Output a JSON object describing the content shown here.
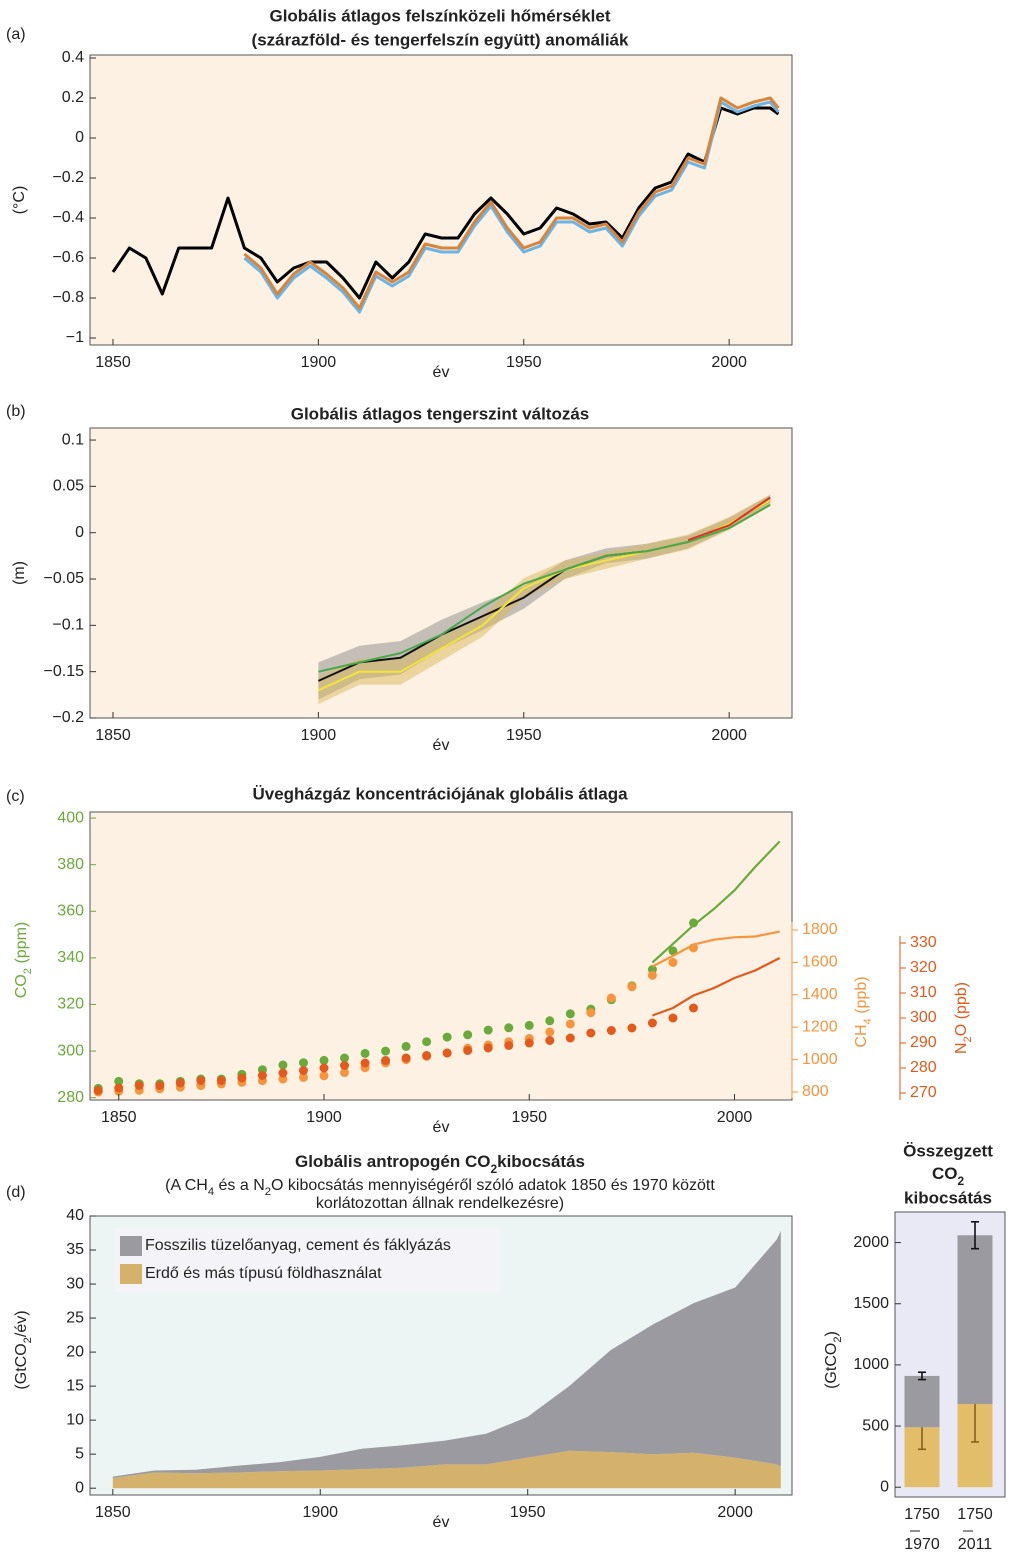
{
  "chart_data": [
    {
      "type": "line",
      "panel_label": "(a)",
      "title": [
        "Globális átlagos felszínközeli hőmérséklet",
        "(szárazföld- és tengerfelszín együtt) anomáliák"
      ],
      "x_label": "év",
      "y_label": "(°C)",
      "xlim": [
        1844.4,
        2015.3
      ],
      "ylim": [
        -1.035,
        0.415
      ],
      "xticks": [
        1850,
        1900,
        1950,
        2000
      ],
      "yticks": [
        {
          "value": -1,
          "label": "−1"
        },
        {
          "value": -0.8,
          "label": "−0.8"
        },
        {
          "value": -0.6,
          "label": "−0.6"
        },
        {
          "value": -0.4,
          "label": "−0.4"
        },
        {
          "value": -0.2,
          "label": "−0.2"
        },
        0,
        0.2,
        0.4
      ],
      "x": [
        1850,
        1854,
        1858,
        1862,
        1866,
        1870,
        1874,
        1878,
        1882,
        1886,
        1890,
        1894,
        1898,
        1902,
        1906,
        1910,
        1914,
        1918,
        1922,
        1926,
        1930,
        1934,
        1938,
        1942,
        1946,
        1950,
        1954,
        1958,
        1962,
        1966,
        1970,
        1974,
        1978,
        1982,
        1986,
        1990,
        1994,
        1998,
        2002,
        2006,
        2010,
        2012
      ],
      "series": [
        {
          "color": "#000000",
          "values": [
            -0.67,
            -0.55,
            -0.6,
            -0.78,
            -0.55,
            -0.55,
            -0.55,
            -0.3,
            -0.55,
            -0.6,
            -0.72,
            -0.65,
            -0.62,
            -0.62,
            -0.7,
            -0.8,
            -0.62,
            -0.7,
            -0.62,
            -0.48,
            -0.5,
            -0.5,
            -0.38,
            -0.3,
            -0.38,
            -0.48,
            -0.45,
            -0.35,
            -0.38,
            -0.43,
            -0.42,
            -0.5,
            -0.35,
            -0.25,
            -0.22,
            -0.08,
            -0.12,
            0.15,
            0.12,
            0.15,
            0.15,
            0.12
          ]
        },
        {
          "color": "#6cb4e4",
          "values": [
            null,
            null,
            null,
            null,
            null,
            null,
            null,
            null,
            -0.6,
            -0.67,
            -0.8,
            -0.7,
            -0.64,
            -0.7,
            -0.77,
            -0.87,
            -0.69,
            -0.74,
            -0.69,
            -0.55,
            -0.57,
            -0.57,
            -0.44,
            -0.34,
            -0.47,
            -0.57,
            -0.54,
            -0.42,
            -0.42,
            -0.47,
            -0.45,
            -0.54,
            -0.39,
            -0.29,
            -0.26,
            -0.12,
            -0.15,
            0.18,
            0.13,
            0.16,
            0.18,
            0.13
          ]
        },
        {
          "color": "#d8843c",
          "values": [
            null,
            null,
            null,
            null,
            null,
            null,
            null,
            null,
            -0.58,
            -0.65,
            -0.78,
            -0.68,
            -0.62,
            -0.68,
            -0.75,
            -0.85,
            -0.67,
            -0.72,
            -0.67,
            -0.53,
            -0.55,
            -0.55,
            -0.42,
            -0.32,
            -0.45,
            -0.55,
            -0.52,
            -0.4,
            -0.4,
            -0.45,
            -0.43,
            -0.52,
            -0.37,
            -0.27,
            -0.24,
            -0.1,
            -0.13,
            0.2,
            0.15,
            0.18,
            0.2,
            0.15
          ]
        }
      ]
    },
    {
      "type": "line",
      "panel_label": "(b)",
      "title": "Globális átlagos tengerszint változás",
      "x_label": "év",
      "y_label": "(m)",
      "xlim": [
        1844.4,
        2015.3
      ],
      "ylim": [
        -0.2,
        0.113
      ],
      "xticks": [
        1850,
        1900,
        1950,
        2000
      ],
      "yticks": [
        {
          "value": -0.2,
          "label": "−0.2"
        },
        {
          "value": -0.15,
          "label": "−0.15"
        },
        {
          "value": -0.1,
          "label": "−0.1"
        },
        {
          "value": -0.05,
          "label": "−0.05"
        },
        0,
        0.05,
        0.1
      ],
      "x": [
        1900,
        1910,
        1920,
        1930,
        1940,
        1950,
        1960,
        1970,
        1980,
        1990,
        2000,
        2010
      ],
      "series": [
        {
          "color": "#111111",
          "band_color": "#8c8c8c",
          "values": [
            -0.16,
            -0.14,
            -0.135,
            -0.11,
            -0.09,
            -0.07,
            -0.04,
            -0.025,
            -0.02,
            -0.01,
            0.01,
            0.035
          ],
          "errors": [
            0.02,
            0.018,
            0.018,
            0.016,
            0.015,
            0.012,
            0.01,
            0.008,
            0.008,
            0.007,
            0.006,
            0.006
          ]
        },
        {
          "color": "#f2e43a",
          "band_color": "#d9b85a",
          "values": [
            -0.17,
            -0.15,
            -0.15,
            -0.125,
            -0.1,
            -0.06,
            -0.04,
            -0.03,
            -0.02,
            -0.01,
            0.01,
            0.035
          ],
          "errors": [
            0.015,
            0.014,
            0.014,
            0.013,
            0.012,
            0.011,
            0.01,
            0.009,
            0.008,
            0.008,
            0.007,
            0.006
          ]
        },
        {
          "color": "#4aa84a",
          "values": [
            -0.15,
            -0.14,
            -0.13,
            -0.11,
            -0.08,
            -0.055,
            -0.04,
            -0.025,
            -0.02,
            -0.01,
            0.005,
            0.03
          ]
        },
        {
          "color": "#e0302a",
          "values": [
            null,
            null,
            null,
            null,
            null,
            null,
            null,
            null,
            null,
            -0.008,
            0.008,
            0.038
          ]
        }
      ]
    },
    {
      "type": "scatter",
      "panel_label": "(c)",
      "title": "Üvegházgáz koncentrációjának globális átlaga",
      "x_label": "év",
      "y_label": [
        "CO",
        "2",
        " (ppm)"
      ],
      "y2_label": [
        "CH",
        "4",
        " (ppb)"
      ],
      "y3_label": [
        "N",
        "2",
        "O (ppb)"
      ],
      "xlim": [
        1843,
        2014
      ],
      "ylim": [
        279,
        402.6
      ],
      "y2lim": [
        800,
        1800
      ],
      "y3lim": [
        270,
        330
      ],
      "xticks": [
        1850,
        1900,
        1950,
        2000
      ],
      "yticks": [
        280,
        300,
        320,
        340,
        360,
        380,
        400
      ],
      "y2ticks": [
        800,
        1000,
        1200,
        1400,
        1600,
        1800
      ],
      "y3ticks": [
        270,
        280,
        290,
        300,
        310,
        320,
        330
      ],
      "y_color": "#6aaa3a",
      "y2_color": "#f7943c",
      "y3_color": "#e35a1a",
      "series": [
        {
          "axis": "y",
          "mode": "markers",
          "color": "#6aaa3a",
          "x": [
            1845,
            1850,
            1855,
            1860,
            1865,
            1870,
            1875,
            1880,
            1885,
            1890,
            1895,
            1900,
            1905,
            1910,
            1915,
            1920,
            1925,
            1930,
            1935,
            1940,
            1945,
            1950,
            1955,
            1960,
            1965,
            1970,
            1975,
            1980,
            1985,
            1990
          ],
          "values": [
            284,
            287,
            286,
            286,
            287,
            288,
            288,
            290,
            292,
            294,
            295,
            296,
            297,
            299,
            300,
            302,
            304,
            306,
            307,
            309,
            310,
            311,
            313,
            316,
            318,
            322,
            328,
            335,
            343,
            355
          ]
        },
        {
          "axis": "y2",
          "mode": "markers",
          "color": "#f7943c",
          "x": [
            1845,
            1850,
            1855,
            1860,
            1865,
            1870,
            1875,
            1880,
            1885,
            1890,
            1895,
            1900,
            1905,
            1910,
            1915,
            1920,
            1925,
            1930,
            1935,
            1940,
            1945,
            1950,
            1955,
            1960,
            1965,
            1970,
            1975,
            1980,
            1985,
            1990
          ],
          "values": [
            800,
            805,
            810,
            820,
            830,
            840,
            850,
            860,
            870,
            880,
            890,
            900,
            920,
            950,
            980,
            1000,
            1020,
            1040,
            1070,
            1090,
            1110,
            1130,
            1170,
            1220,
            1290,
            1380,
            1450,
            1520,
            1600,
            1690
          ]
        },
        {
          "axis": "y3",
          "mode": "markers",
          "color": "#e35a1a",
          "x": [
            1845,
            1850,
            1855,
            1860,
            1865,
            1870,
            1875,
            1880,
            1885,
            1890,
            1895,
            1900,
            1905,
            1910,
            1915,
            1920,
            1925,
            1930,
            1935,
            1940,
            1945,
            1950,
            1955,
            1960,
            1965,
            1970,
            1975,
            1980,
            1985,
            1990
          ],
          "values": [
            271,
            272,
            273,
            273,
            274,
            275,
            275,
            276,
            277,
            278,
            279,
            280,
            281,
            282,
            283,
            284,
            285,
            286,
            287,
            288,
            289,
            290,
            291,
            292,
            294,
            295,
            296,
            298,
            300,
            304
          ]
        },
        {
          "axis": "y",
          "mode": "lines",
          "color": "#6aaa3a",
          "x": [
            1980,
            1985,
            1990,
            1995,
            2000,
            2005,
            2011
          ],
          "values": [
            338,
            346,
            354,
            361,
            369,
            379,
            390
          ]
        },
        {
          "axis": "y2",
          "mode": "lines",
          "color": "#f7943c",
          "x": [
            1980,
            1985,
            1990,
            1995,
            2000,
            2005,
            2011
          ],
          "values": [
            1575,
            1640,
            1710,
            1740,
            1755,
            1760,
            1790
          ]
        },
        {
          "axis": "y3",
          "mode": "lines",
          "color": "#e35a1a",
          "x": [
            1980,
            1985,
            1990,
            1995,
            2000,
            2005,
            2011
          ],
          "values": [
            301,
            304,
            309,
            312,
            316,
            319,
            324
          ]
        }
      ]
    },
    {
      "type": "area",
      "stacked": true,
      "panel_label": "(d)",
      "title": [
        "Globális antropogén CO",
        "2",
        "kibocsátás"
      ],
      "subtitle": [
        "(A CH",
        "4",
        " és a N",
        "2",
        "O  kibocsátás mennyiségéről szóló adatok 1850 és 1970 között",
        "korlátozottan állnak rendelkezésre)"
      ],
      "x_label": "év",
      "y_label": [
        "(GtCO",
        "2",
        "/év",
        ")"
      ],
      "xlim": [
        1844.5,
        2013.7
      ],
      "ylim": [
        -1,
        40
      ],
      "xticks": [
        1850,
        1900,
        1950,
        2000
      ],
      "yticks": [
        0,
        5,
        10,
        15,
        20,
        25,
        30,
        35,
        40
      ],
      "legend": "upper left",
      "x": [
        1850,
        1860,
        1870,
        1880,
        1890,
        1900,
        1910,
        1920,
        1930,
        1940,
        1950,
        1960,
        1970,
        1980,
        1990,
        2000,
        2010,
        2011
      ],
      "series": [
        {
          "name": "Erdő és más típusú földhasználat",
          "color": "#d4b26c",
          "values": [
            1.5,
            2.3,
            2.2,
            2.3,
            2.5,
            2.6,
            2.8,
            3,
            3.5,
            3.5,
            4.5,
            5.5,
            5.3,
            5,
            5.2,
            4.5,
            3.5,
            3.2
          ]
        },
        {
          "name": "Fosszilis tüzelőanyag, cement és fáklyázás",
          "color": "#9b9aa0",
          "values": [
            0.2,
            0.3,
            0.5,
            1,
            1.3,
            2,
            3,
            3.3,
            3.5,
            4.5,
            6,
            9.5,
            15,
            19,
            22,
            25,
            33,
            34.6
          ]
        }
      ]
    },
    {
      "type": "bar",
      "stacked": true,
      "title": [
        "Összegzett",
        "CO",
        "2",
        "kibocsátás"
      ],
      "y_label": [
        "(GtCO",
        "2",
        ")"
      ],
      "ylim": [
        -80,
        2250
      ],
      "yticks": [
        0,
        500,
        1000,
        1500,
        2000
      ],
      "categories": [
        [
          "1750",
          "1970"
        ],
        [
          "1750",
          "2011"
        ]
      ],
      "series": [
        {
          "color": "#e2bd6a",
          "error_color": "#8b5e1a",
          "values": [
            490,
            680
          ],
          "errors": [
            180,
            310
          ]
        },
        {
          "color": "#9b9aa0",
          "error_color": "#111111",
          "values": [
            420,
            1380
          ],
          "errors": [
            30,
            110
          ]
        }
      ]
    }
  ]
}
